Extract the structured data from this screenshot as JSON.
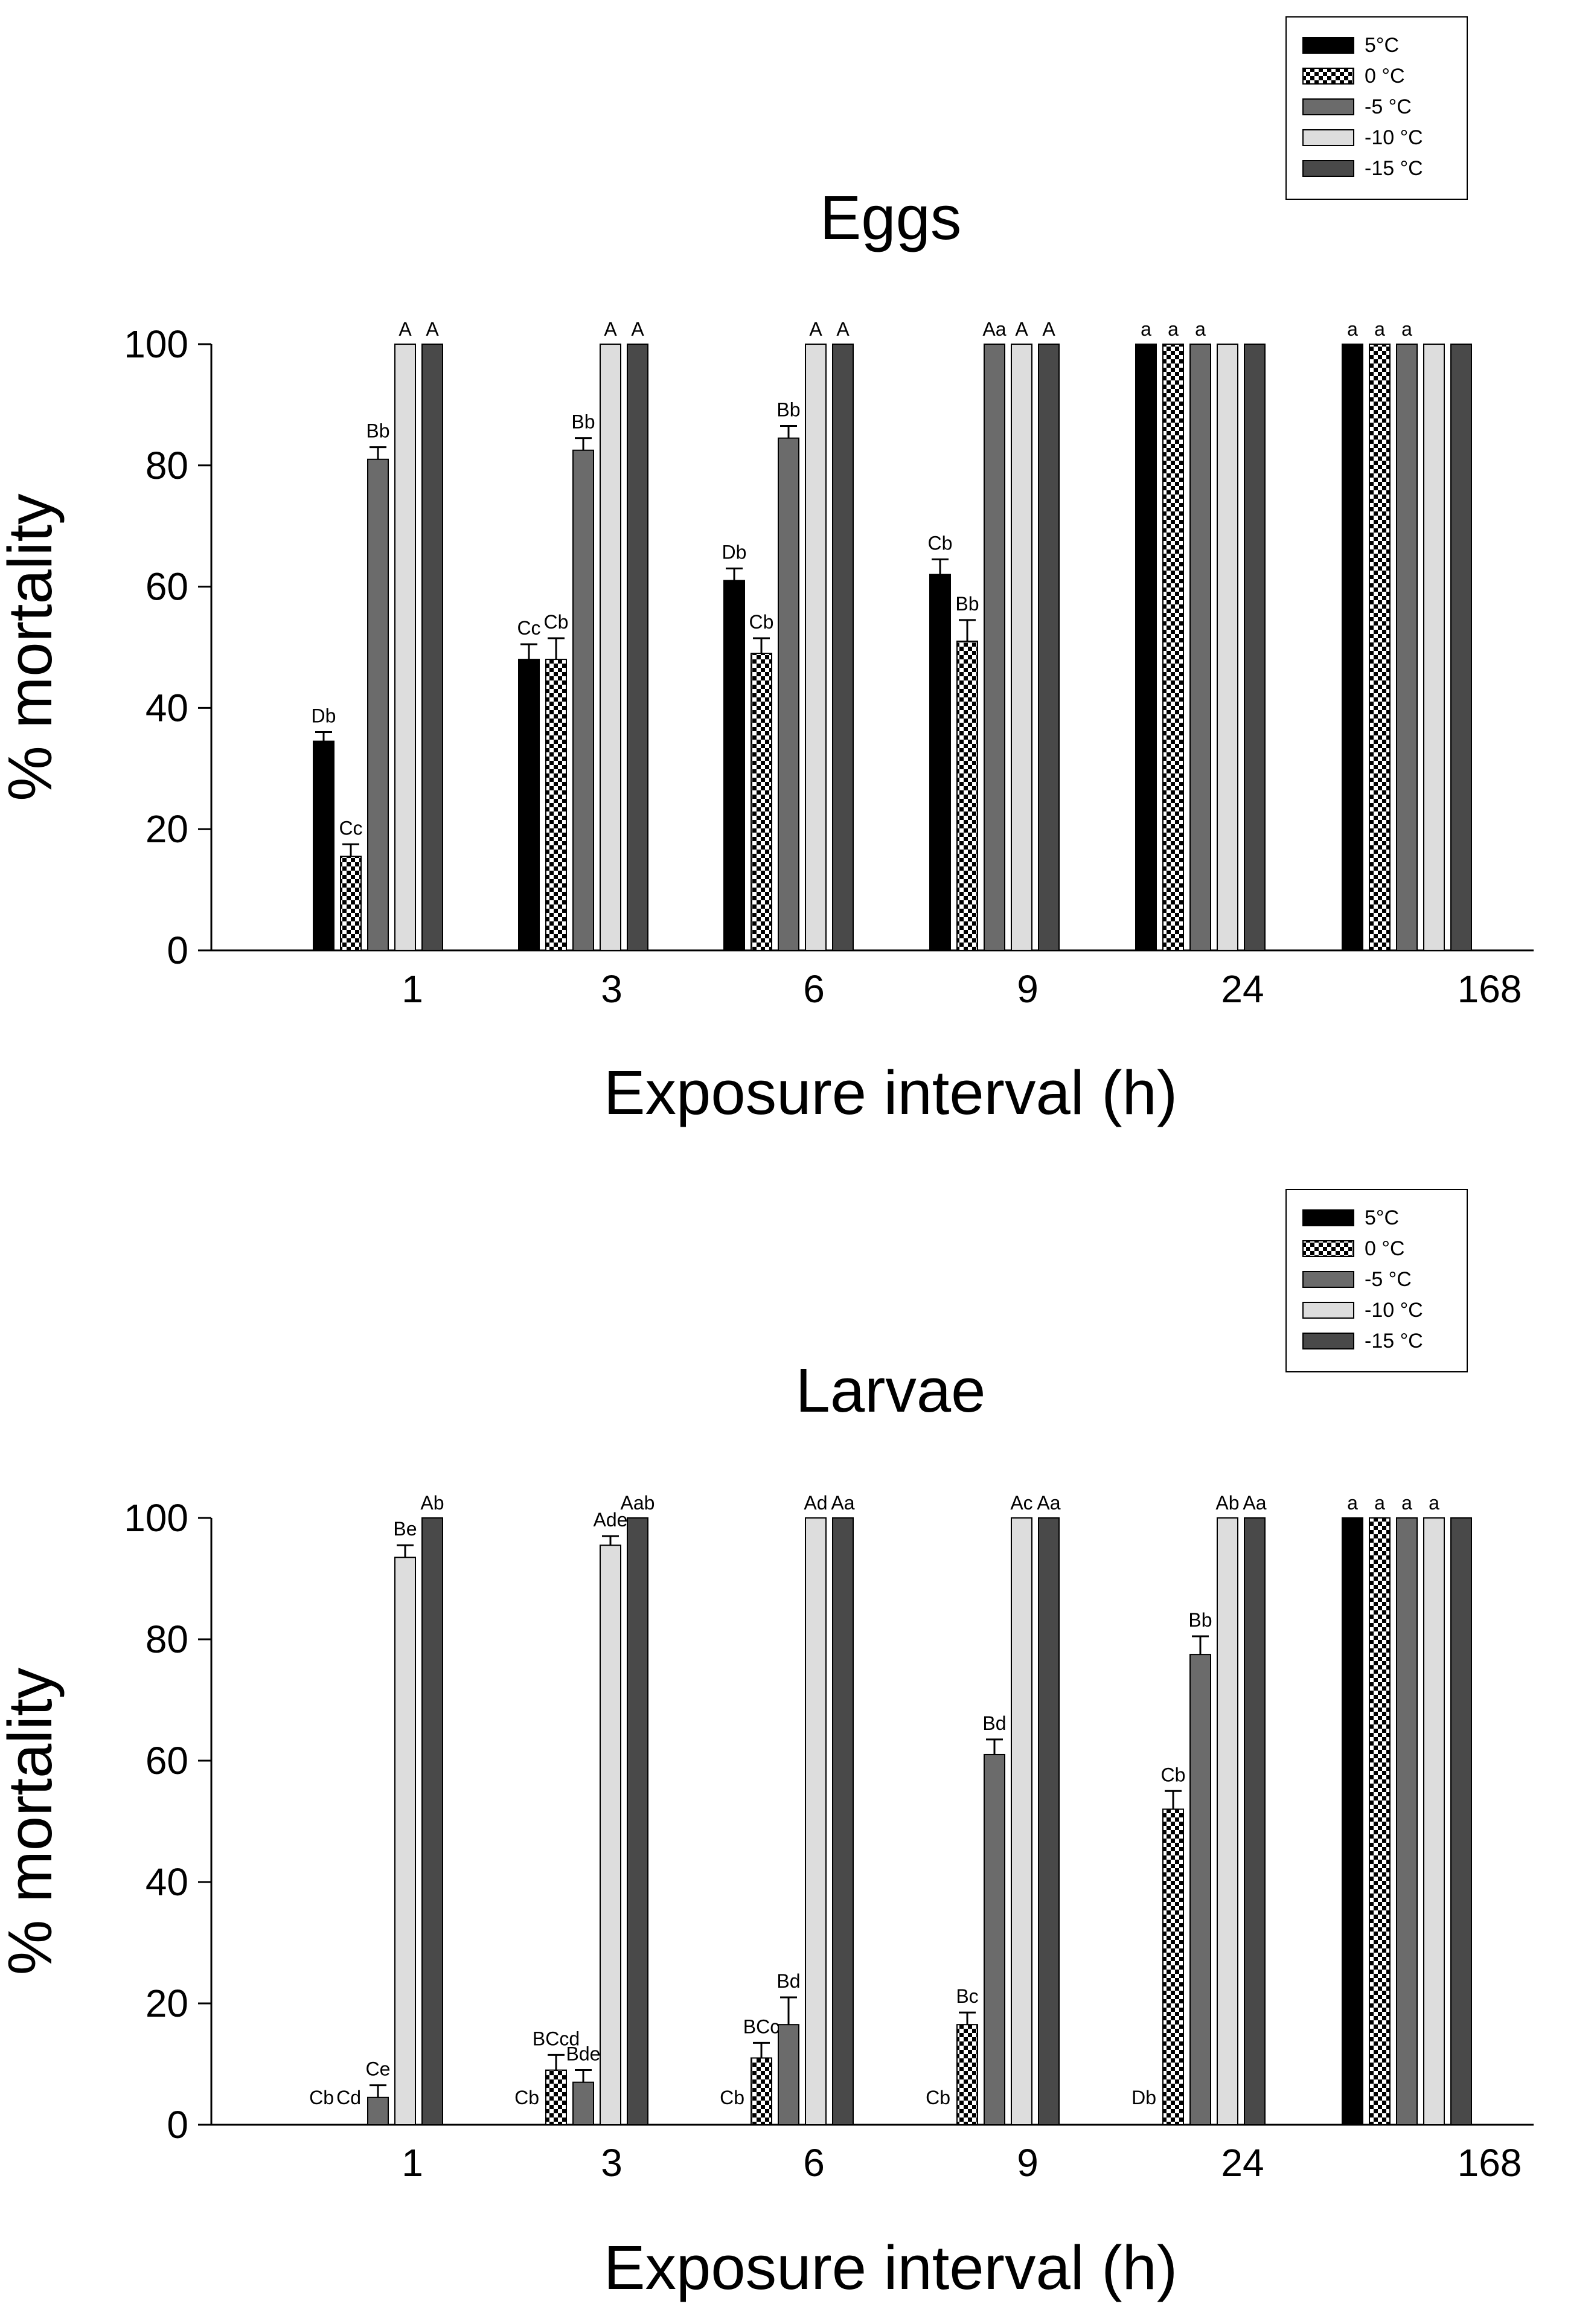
{
  "chart_data": [
    {
      "type": "bar",
      "title": "Eggs",
      "xlabel": "Exposure interval (h)",
      "ylabel": "% mortality",
      "ylim": [
        0,
        100
      ],
      "yticks": [
        "0",
        "20",
        "40",
        "60",
        "80",
        "100"
      ],
      "categories": [
        "1",
        "3",
        "6",
        "9",
        "24",
        "168"
      ],
      "legend_position": "top-right",
      "series": [
        {
          "name": "5°C",
          "fill": "black",
          "values": [
            34.5,
            48,
            61,
            62,
            100,
            100
          ],
          "errors": [
            1.5,
            2.5,
            2,
            2.5,
            0,
            0
          ],
          "labels": [
            "Db",
            "Cc",
            "Db",
            "Cb",
            "a",
            "a"
          ]
        },
        {
          "name": "0 °C",
          "fill": "checker",
          "values": [
            15.5,
            48,
            49,
            51,
            100,
            100
          ],
          "errors": [
            2,
            3.5,
            2.5,
            3.5,
            0,
            0
          ],
          "labels": [
            "Cc",
            "Cb",
            "Cb",
            "Bb",
            "a",
            "a"
          ]
        },
        {
          "name": "-5 °C",
          "fill": "#6b6b6b",
          "values": [
            81,
            82.5,
            84.5,
            100,
            100,
            100
          ],
          "errors": [
            2,
            2,
            2,
            0,
            0,
            0
          ],
          "labels": [
            "Bb",
            "Bb",
            "Bb",
            "Aa",
            "a",
            "a"
          ]
        },
        {
          "name": "-10 °C",
          "fill": "#dddddd",
          "values": [
            100,
            100,
            100,
            100,
            100,
            100
          ],
          "errors": [
            0,
            0,
            0,
            0,
            0,
            0
          ],
          "labels": [
            "A",
            "A",
            "A",
            "A",
            "",
            ""
          ]
        },
        {
          "name": "-15 °C",
          "fill": "#494949",
          "values": [
            100,
            100,
            100,
            100,
            100,
            100
          ],
          "errors": [
            0,
            0,
            0,
            0,
            0,
            0
          ],
          "labels": [
            "A",
            "A",
            "A",
            "A",
            "",
            ""
          ]
        }
      ]
    },
    {
      "type": "bar",
      "title": "Larvae",
      "xlabel": "Exposure interval (h)",
      "ylabel": "% mortality",
      "ylim": [
        0,
        100
      ],
      "yticks": [
        "0",
        "20",
        "40",
        "60",
        "80",
        "100"
      ],
      "categories": [
        "1",
        "3",
        "6",
        "9",
        "24",
        "168"
      ],
      "legend_position": "top-right",
      "series": [
        {
          "name": "5°C",
          "fill": "black",
          "values": [
            0,
            0,
            0,
            0,
            0,
            100
          ],
          "errors": [
            0,
            0,
            0,
            0,
            0,
            0
          ],
          "labels": [
            "Cb",
            "Cb",
            "Cb",
            "Cb",
            "Db",
            "a"
          ]
        },
        {
          "name": "0 °C",
          "fill": "checker",
          "values": [
            0,
            9,
            11,
            16.5,
            52,
            100
          ],
          "errors": [
            0,
            2.5,
            2.5,
            2,
            3,
            0
          ],
          "labels": [
            "Cd",
            "BCcd",
            "BCc",
            "Bc",
            "Cb",
            "a"
          ]
        },
        {
          "name": "-5 °C",
          "fill": "#6b6b6b",
          "values": [
            4.5,
            7,
            16.5,
            61,
            77.5,
            100
          ],
          "errors": [
            2,
            2,
            4.5,
            2.5,
            3,
            0
          ],
          "labels": [
            "Ce",
            "Bde",
            "Bd",
            "Bd",
            "Bb",
            "a"
          ]
        },
        {
          "name": "-10 °C",
          "fill": "#dddddd",
          "values": [
            93.5,
            95.5,
            100,
            100,
            100,
            100
          ],
          "errors": [
            2,
            1.5,
            0,
            0,
            0,
            0
          ],
          "labels": [
            "Be",
            "Ade",
            "Ad",
            "Ac",
            "Ab",
            "a"
          ]
        },
        {
          "name": "-15 °C",
          "fill": "#494949",
          "values": [
            100,
            100,
            100,
            100,
            100,
            100
          ],
          "errors": [
            0,
            0,
            0,
            0,
            0,
            0
          ],
          "labels": [
            "Ab",
            "Aab",
            "Aa",
            "Aa",
            "Aa",
            ""
          ]
        }
      ]
    }
  ]
}
